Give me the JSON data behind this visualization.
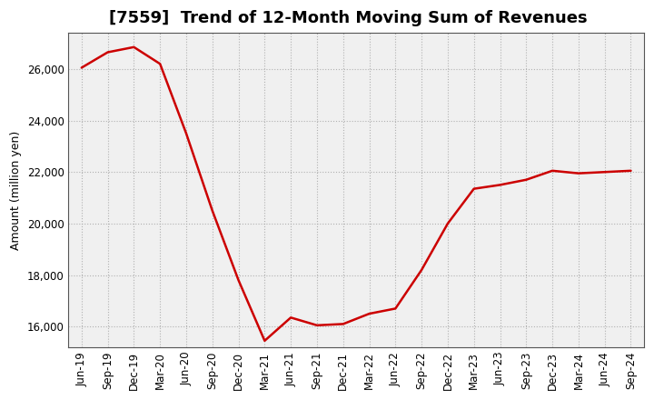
{
  "title": "[7559]  Trend of 12-Month Moving Sum of Revenues",
  "ylabel": "Amount (million yen)",
  "line_color": "#cc0000",
  "background_color": "#ffffff",
  "plot_bg_color": "#f0f0f0",
  "grid_color": "#aaaaaa",
  "x_labels": [
    "Jun-19",
    "Sep-19",
    "Dec-19",
    "Mar-20",
    "Jun-20",
    "Sep-20",
    "Dec-20",
    "Mar-21",
    "Jun-21",
    "Sep-21",
    "Dec-21",
    "Mar-22",
    "Jun-22",
    "Sep-22",
    "Dec-22",
    "Mar-23",
    "Jun-23",
    "Sep-23",
    "Dec-23",
    "Mar-24",
    "Jun-24",
    "Sep-24"
  ],
  "y_values": [
    26050,
    26650,
    26850,
    26200,
    23500,
    20500,
    17800,
    15450,
    16350,
    16050,
    16100,
    16500,
    16700,
    18200,
    20000,
    21350,
    21500,
    21700,
    22050,
    21950,
    22000,
    22050
  ],
  "ylim": [
    15200,
    27400
  ],
  "yticks": [
    16000,
    18000,
    20000,
    22000,
    24000,
    26000
  ],
  "title_fontsize": 13,
  "label_fontsize": 9,
  "tick_fontsize": 8.5
}
